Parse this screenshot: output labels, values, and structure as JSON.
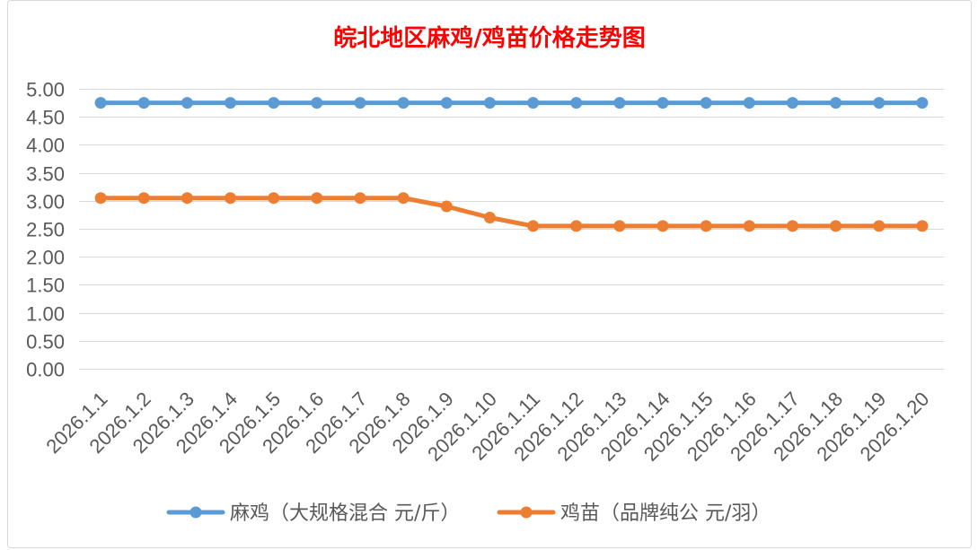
{
  "chart_data": {
    "type": "line",
    "title": "皖北地区麻鸡/鸡苗价格走势图",
    "title_color": "#FF0000",
    "categories": [
      "2026.1.1",
      "2026.1.2",
      "2026.1.3",
      "2026.1.4",
      "2026.1.5",
      "2026.1.6",
      "2026.1.7",
      "2026.1.8",
      "2026.1.9",
      "2026.1.10",
      "2026.1.11",
      "2026.1.12",
      "2026.1.13",
      "2026.1.14",
      "2026.1.15",
      "2026.1.16",
      "2026.1.17",
      "2026.1.18",
      "2026.1.19",
      "2026.1.20"
    ],
    "series": [
      {
        "name": "麻鸡（大规格混合 元/斤）",
        "color": "#5B9BD5",
        "values": [
          4.75,
          4.75,
          4.75,
          4.75,
          4.75,
          4.75,
          4.75,
          4.75,
          4.75,
          4.75,
          4.75,
          4.75,
          4.75,
          4.75,
          4.75,
          4.75,
          4.75,
          4.75,
          4.75,
          4.75
        ]
      },
      {
        "name": "鸡苗（品牌纯公 元/羽）",
        "color": "#ED7D31",
        "values": [
          3.05,
          3.05,
          3.05,
          3.05,
          3.05,
          3.05,
          3.05,
          3.05,
          2.9,
          2.7,
          2.55,
          2.55,
          2.55,
          2.55,
          2.55,
          2.55,
          2.55,
          2.55,
          2.55,
          2.55
        ]
      }
    ],
    "ylim": [
      0,
      5
    ],
    "yticks": [
      "0.00",
      "0.50",
      "1.00",
      "1.50",
      "2.00",
      "2.50",
      "3.00",
      "3.50",
      "4.00",
      "4.50",
      "5.00"
    ],
    "grid": true,
    "legend": "bottom",
    "markers": "circle"
  }
}
